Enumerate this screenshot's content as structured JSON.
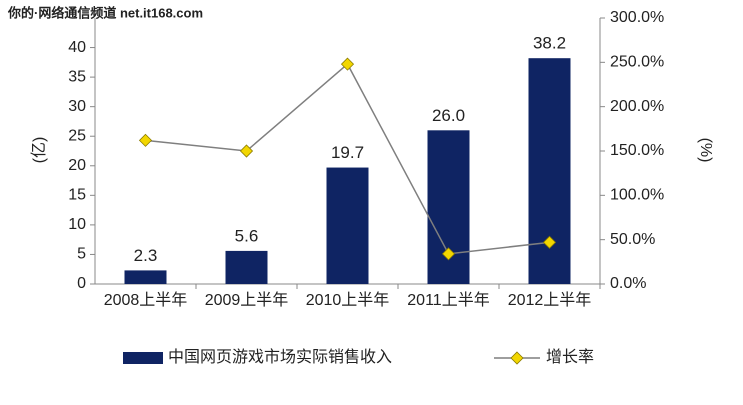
{
  "watermark": "你的·网络通信频道 net.it168.com",
  "chart_data": {
    "type": "bar-line",
    "categories": [
      "2008上半年",
      "2009上半年",
      "2010上半年",
      "2011上半年",
      "2012上半年"
    ],
    "series": [
      {
        "name": "中国网页游戏市场实际销售收入",
        "type": "bar",
        "color": "#0f2463",
        "values": [
          2.3,
          5.6,
          19.7,
          26.0,
          38.2
        ],
        "value_labels": [
          "2.3",
          "5.6",
          "19.7",
          "26.0",
          "38.2"
        ]
      },
      {
        "name": "增长率",
        "type": "line",
        "axis": "y2",
        "color": "#7f7f7f",
        "marker_color": "#f2d600",
        "values": [
          162,
          150,
          248,
          34,
          47
        ]
      }
    ],
    "ylabel": "(亿)",
    "y2label": "(%)",
    "ylim": [
      0,
      45
    ],
    "yticks": [
      0,
      5,
      10,
      15,
      20,
      25,
      30,
      35,
      40
    ],
    "y2lim": [
      0,
      300
    ],
    "y2ticks": [
      {
        "value": 0,
        "label": "0.0%"
      },
      {
        "value": 50,
        "label": "50.0%"
      },
      {
        "value": 100,
        "label": "100.0%"
      },
      {
        "value": 150,
        "label": "150.0%"
      },
      {
        "value": 200,
        "label": "200.0%"
      },
      {
        "value": 250,
        "label": "250.0%"
      },
      {
        "value": 300,
        "label": "300.0%"
      }
    ],
    "legend": "bottom"
  }
}
